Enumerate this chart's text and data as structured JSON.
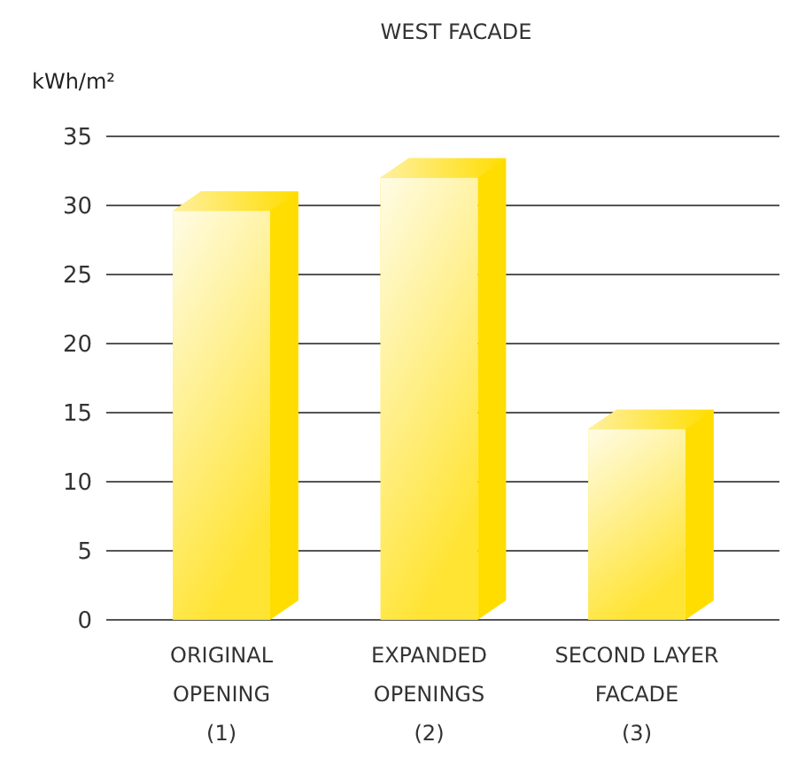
{
  "chart_data": {
    "type": "bar",
    "title": "WEST FACADE",
    "ylabel": "kWh/m²",
    "categories": [
      "ORIGINAL\nOPENING\n(1)",
      "EXPANDED\nOPENINGS\n(2)",
      "SECOND LAYER\nFACADE\n(3)"
    ],
    "values": [
      29.6,
      32,
      13.8
    ],
    "color": "#ffdd00",
    "ylim": [
      0,
      35
    ],
    "yticks": [
      0,
      5,
      10,
      15,
      20,
      25,
      30,
      35
    ],
    "grid": "y"
  }
}
